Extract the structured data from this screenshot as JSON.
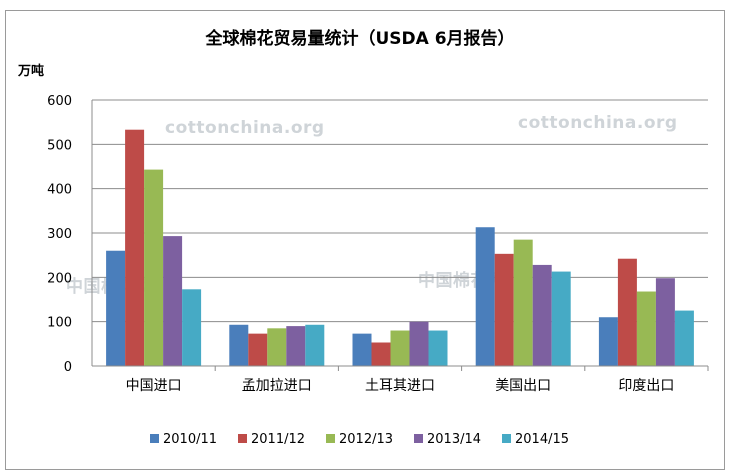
{
  "chart_data": {
    "type": "bar",
    "title": "全球棉花贸易量统计（USDA 6月报告）",
    "ylabel": "万吨",
    "xlabel": "",
    "ylim": [
      0,
      600
    ],
    "yticks": [
      0,
      100,
      200,
      300,
      400,
      500,
      600
    ],
    "grid": true,
    "legend_position": "bottom",
    "categories": [
      "中国进口",
      "孟加拉进口",
      "土耳其进口",
      "美国出口",
      "印度出口"
    ],
    "series": [
      {
        "name": "2010/11",
        "color": "#4a7ebb",
        "values": [
          260,
          93,
          73,
          313,
          110
        ]
      },
      {
        "name": "2011/12",
        "color": "#be4b48",
        "values": [
          533,
          73,
          53,
          253,
          242
        ]
      },
      {
        "name": "2012/13",
        "color": "#98b954",
        "values": [
          443,
          85,
          80,
          285,
          168
        ]
      },
      {
        "name": "2013/14",
        "color": "#7d60a0",
        "values": [
          293,
          90,
          100,
          228,
          198
        ]
      },
      {
        "name": "2014/15",
        "color": "#46aac5",
        "values": [
          173,
          93,
          80,
          213,
          125
        ]
      }
    ]
  },
  "watermarks": [
    "cottonchina.org",
    "cottonchina.org",
    "中国棉花网",
    "中国棉花网"
  ]
}
